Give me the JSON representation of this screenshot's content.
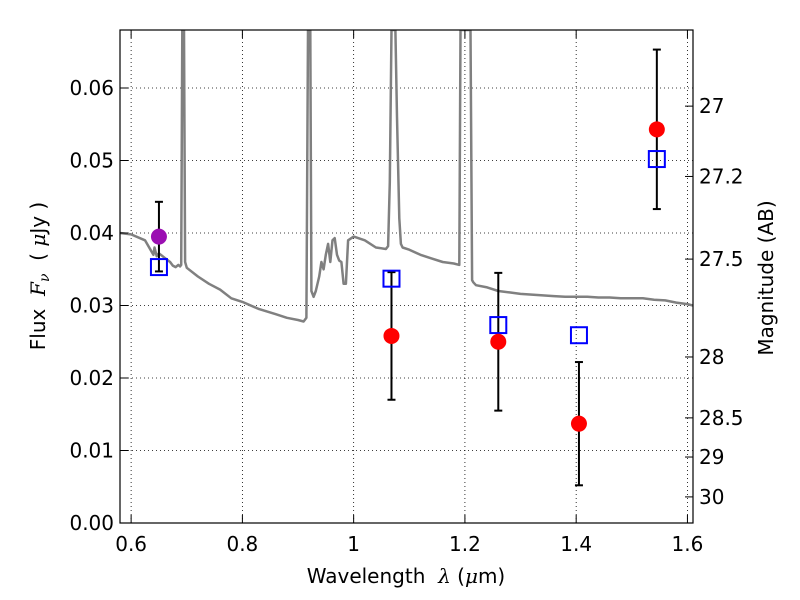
{
  "chart_data": {
    "type": "scatter",
    "xlabel_parts": [
      "Wavelength  ",
      "λ",
      " (",
      "μ",
      "m)"
    ],
    "ylabel_parts": [
      "Flux  ",
      "F",
      "ν",
      "  ( ",
      "μ",
      "Jy )"
    ],
    "y2label": "Magnitude (AB)",
    "xlim": [
      0.58,
      1.61
    ],
    "ylim": [
      0.0,
      0.068
    ],
    "xticks": [
      0.6,
      0.8,
      1.0,
      1.2,
      1.4,
      1.6
    ],
    "xtick_labels": [
      "0.6",
      "0.8",
      "1",
      "1.2",
      "1.4",
      "1.6"
    ],
    "yticks": [
      0.0,
      0.01,
      0.02,
      0.03,
      0.04,
      0.05,
      0.06
    ],
    "ytick_labels": [
      "0.00",
      "0.01",
      "0.02",
      "0.03",
      "0.04",
      "0.05",
      "0.06"
    ],
    "y2ticks": [
      {
        "label": "27",
        "flux": 0.0575
      },
      {
        "label": "27.2",
        "flux": 0.0478
      },
      {
        "label": "27.5",
        "flux": 0.0364
      },
      {
        "label": "28",
        "flux": 0.0229
      },
      {
        "label": "28.5",
        "flux": 0.0145
      },
      {
        "label": "29",
        "flux": 0.0091
      },
      {
        "label": "30",
        "flux": 0.0036
      }
    ],
    "grid": true,
    "series": [
      {
        "kind": "model_spectrum",
        "color": "#808080",
        "x": [
          0.58,
          0.6,
          0.625,
          0.64,
          0.642,
          0.646,
          0.65,
          0.66,
          0.67,
          0.675,
          0.68,
          0.685,
          0.688,
          0.69,
          0.692,
          0.695,
          0.697,
          0.7,
          0.72,
          0.74,
          0.76,
          0.78,
          0.8,
          0.83,
          0.86,
          0.88,
          0.9,
          0.91,
          0.915,
          0.918,
          0.92,
          0.922,
          0.924,
          0.928,
          0.932,
          0.938,
          0.942,
          0.946,
          0.95,
          0.954,
          0.958,
          0.962,
          0.966,
          0.97,
          0.974,
          0.978,
          0.982,
          0.986,
          0.99,
          1.0,
          1.02,
          1.04,
          1.058,
          1.062,
          1.065,
          1.068,
          1.07,
          1.072,
          1.075,
          1.078,
          1.082,
          1.085,
          1.088,
          1.1,
          1.12,
          1.14,
          1.16,
          1.18,
          1.19,
          1.192,
          1.194,
          1.2,
          1.205,
          1.208,
          1.21,
          1.213,
          1.215,
          1.22,
          1.24,
          1.26,
          1.28,
          1.3,
          1.32,
          1.34,
          1.36,
          1.38,
          1.4,
          1.42,
          1.44,
          1.46,
          1.48,
          1.5,
          1.52,
          1.54,
          1.56,
          1.58,
          1.6,
          1.61
        ],
        "y": [
          0.04,
          0.0398,
          0.039,
          0.037,
          0.038,
          0.0368,
          0.0372,
          0.0366,
          0.036,
          0.0355,
          0.0353,
          0.0356,
          0.0354,
          0.0356,
          0.068,
          0.068,
          0.036,
          0.0352,
          0.034,
          0.033,
          0.0322,
          0.031,
          0.0305,
          0.0295,
          0.0288,
          0.0283,
          0.028,
          0.0278,
          0.0283,
          0.068,
          0.068,
          0.068,
          0.032,
          0.0312,
          0.032,
          0.034,
          0.036,
          0.035,
          0.037,
          0.0385,
          0.036,
          0.039,
          0.0393,
          0.037,
          0.0362,
          0.036,
          0.033,
          0.033,
          0.039,
          0.0395,
          0.039,
          0.038,
          0.0378,
          0.0382,
          0.047,
          0.068,
          0.068,
          0.068,
          0.068,
          0.056,
          0.042,
          0.0385,
          0.038,
          0.0377,
          0.037,
          0.0365,
          0.036,
          0.0358,
          0.0356,
          0.068,
          0.068,
          0.068,
          0.068,
          0.068,
          0.068,
          0.0335,
          0.0332,
          0.0328,
          0.0325,
          0.032,
          0.0318,
          0.0316,
          0.0315,
          0.0314,
          0.0313,
          0.0312,
          0.0312,
          0.0312,
          0.0311,
          0.0311,
          0.031,
          0.031,
          0.031,
          0.0308,
          0.0307,
          0.0304,
          0.0302,
          0.03
        ]
      },
      {
        "kind": "observed",
        "marker": "circle",
        "points": [
          {
            "x": 0.65,
            "y": 0.0395,
            "yerr": 0.0048,
            "color": "#9b0fb2"
          },
          {
            "x": 1.068,
            "y": 0.0258,
            "yerr": 0.0088,
            "color": "#ff0000"
          },
          {
            "x": 1.26,
            "y": 0.025,
            "yerr": 0.0095,
            "color": "#ff0000"
          },
          {
            "x": 1.405,
            "y": 0.0137,
            "yerr": 0.0085,
            "color": "#ff0000"
          },
          {
            "x": 1.545,
            "y": 0.0543,
            "yerr": 0.011,
            "color": "#ff0000"
          }
        ]
      },
      {
        "kind": "model_photometry",
        "marker": "square",
        "color": "#0000ff",
        "points": [
          {
            "x": 0.65,
            "y": 0.0353
          },
          {
            "x": 1.068,
            "y": 0.0337
          },
          {
            "x": 1.26,
            "y": 0.0273
          },
          {
            "x": 1.405,
            "y": 0.0259
          },
          {
            "x": 1.545,
            "y": 0.0502
          }
        ]
      }
    ]
  }
}
